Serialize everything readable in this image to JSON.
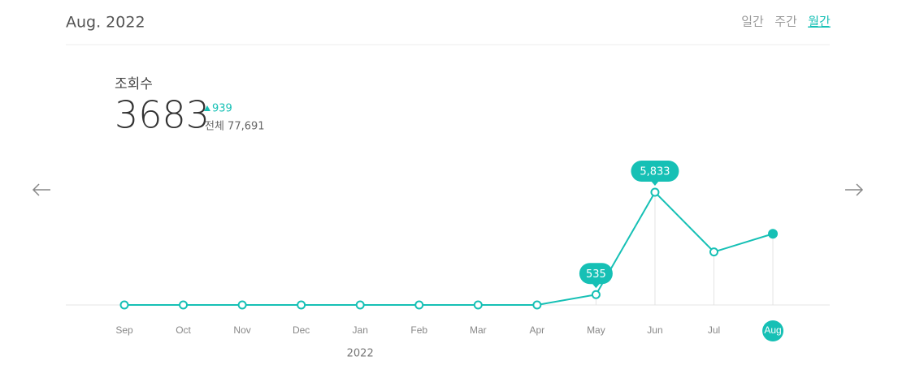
{
  "header": {
    "date": "Aug. 2022",
    "tabs": [
      "일간",
      "주간",
      "월간"
    ],
    "active_tab": 2
  },
  "summary": {
    "label": "조회수",
    "value": "3683",
    "change": "939",
    "total": "전체 77,691"
  },
  "chart_data": {
    "type": "line",
    "color": "#16c0b5",
    "categories": [
      "Sep",
      "Oct",
      "Nov",
      "Dec",
      "Jan",
      "Feb",
      "Mar",
      "Apr",
      "May",
      "Jun",
      "Jul",
      "Aug"
    ],
    "values": [
      0,
      0,
      0,
      0,
      0,
      0,
      0,
      0,
      535,
      5833,
      2744,
      3683
    ],
    "value_labels": [
      null,
      null,
      null,
      null,
      null,
      null,
      null,
      null,
      "535",
      "5,833",
      null,
      null
    ],
    "xlabel": "2022",
    "current": 11
  }
}
